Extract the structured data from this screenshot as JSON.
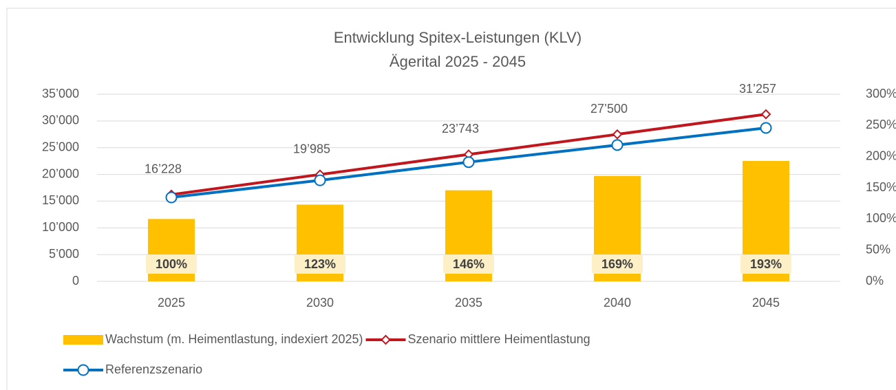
{
  "chart_data": {
    "type": "bar-line",
    "title": "Entwicklung Spitex-Leistungen (KLV)",
    "subtitle": "Ägerital 2025 - 2045",
    "categories": [
      "2025",
      "2030",
      "2035",
      "2040",
      "2045"
    ],
    "series": [
      {
        "name": "Wachstum (m. Heimentlastung, indexiert 2025)",
        "type": "bar",
        "axis": "y2",
        "color": "#ffc000",
        "values": [
          100,
          123,
          146,
          169,
          193
        ],
        "value_labels": [
          "100%",
          "123%",
          "146%",
          "169%",
          "193%"
        ]
      },
      {
        "name": "Szenario mittlere Heimentlastung",
        "type": "line",
        "marker": "diamond",
        "color": "#c0161e",
        "values": [
          16228,
          19985,
          23743,
          27500,
          31257
        ],
        "value_labels": [
          "16’228",
          "19’985",
          "23’743",
          "27’500",
          "31’257"
        ]
      },
      {
        "name": "Referenzszenario",
        "type": "line",
        "marker": "circle",
        "color": "#0070c0",
        "values": [
          15700,
          18900,
          22300,
          25500,
          28700
        ]
      }
    ],
    "ylim": [
      0,
      35000
    ],
    "yticks": [
      0,
      {
        "value": 5000,
        "label": "5’000"
      },
      {
        "value": 10000,
        "label": "10’000"
      },
      {
        "value": 15000,
        "label": "15’000"
      },
      {
        "value": 20000,
        "label": "20’000"
      },
      {
        "value": 25000,
        "label": "25’000"
      },
      {
        "value": 30000,
        "label": "30’000"
      },
      {
        "value": 35000,
        "label": "35’000"
      }
    ],
    "y2lim": [
      0,
      300
    ],
    "y2ticks": [
      {
        "value": 0,
        "label": "0%"
      },
      {
        "value": 50,
        "label": "50%"
      },
      {
        "value": 100,
        "label": "100%"
      },
      {
        "value": 150,
        "label": "150%"
      },
      {
        "value": 200,
        "label": "200%"
      },
      {
        "value": 250,
        "label": "250%"
      },
      {
        "value": 300,
        "label": "300%"
      }
    ],
    "grid": true,
    "legend": "bottom"
  }
}
